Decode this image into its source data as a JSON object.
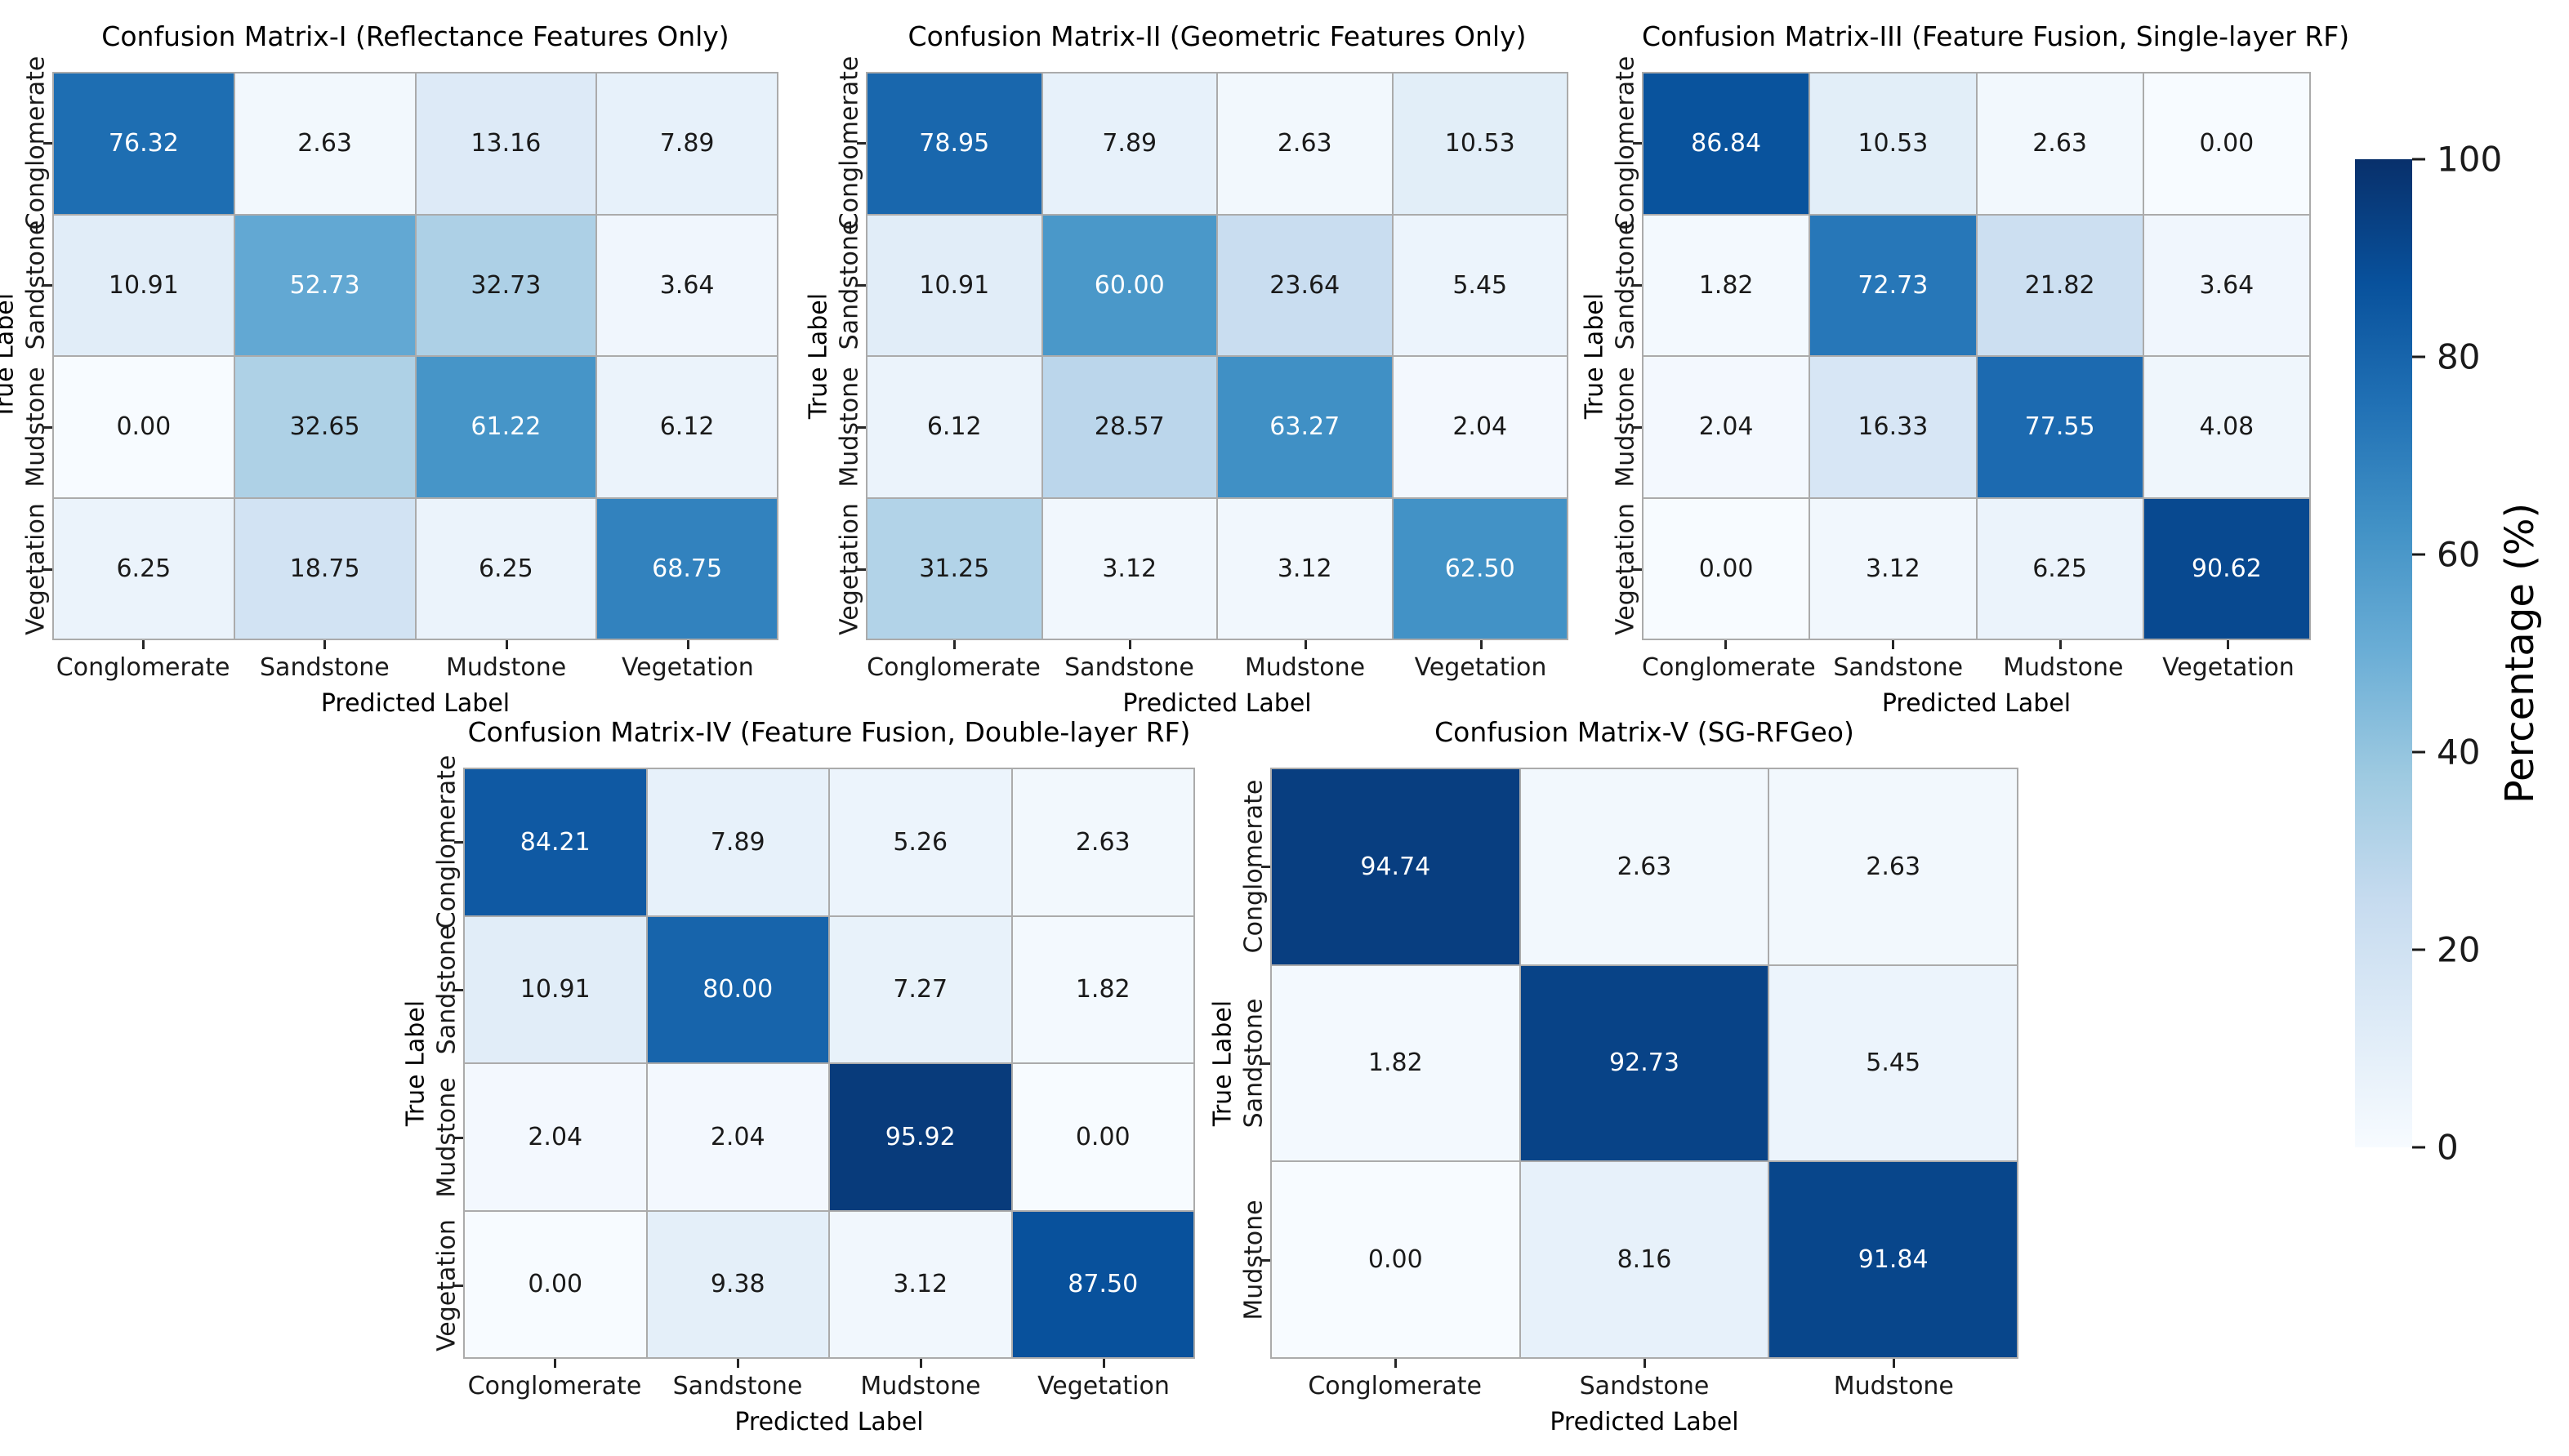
{
  "figure": {
    "background": "#ffffff",
    "colorbar": {
      "label": "Percentage (%)",
      "tick_values": [
        100,
        80,
        60,
        40,
        20,
        0
      ],
      "tick_labels": [
        "100",
        "80",
        "60",
        "40",
        "20",
        "0"
      ],
      "vmin": 0,
      "vmax": 100,
      "colormap": "Blues",
      "gradient_stops_light_to_dark": [
        "#f7fbff",
        "#deebf7",
        "#c6dbef",
        "#9ecae1",
        "#6baed6",
        "#4292c6",
        "#2171b5",
        "#08519c",
        "#08306b"
      ]
    },
    "annotation_text_dark": "#1a1a1a",
    "annotation_text_light": "#ffffff",
    "grid_line_color": "#ababab"
  },
  "chart_data": [
    {
      "type": "heatmap",
      "title": "Confusion Matrix-I (Reflectance Features Only)",
      "xlabel": "Predicted Label",
      "ylabel": "True Label",
      "x_categories": [
        "Conglomerate",
        "Sandstone",
        "Mudstone",
        "Vegetation"
      ],
      "y_categories": [
        "Conglomerate",
        "Sandstone",
        "Mudstone",
        "Vegetation"
      ],
      "values": [
        [
          76.32,
          2.63,
          13.16,
          7.89
        ],
        [
          10.91,
          52.73,
          32.73,
          3.64
        ],
        [
          0.0,
          32.65,
          61.22,
          6.12
        ],
        [
          6.25,
          18.75,
          6.25,
          68.75
        ]
      ],
      "vmin": 0,
      "vmax": 100,
      "colormap": "Blues",
      "legend": "none",
      "grid": "cell-borders"
    },
    {
      "type": "heatmap",
      "title": "Confusion Matrix-II (Geometric Features Only)",
      "xlabel": "Predicted Label",
      "ylabel": "True Label",
      "x_categories": [
        "Conglomerate",
        "Sandstone",
        "Mudstone",
        "Vegetation"
      ],
      "y_categories": [
        "Conglomerate",
        "Sandstone",
        "Mudstone",
        "Vegetation"
      ],
      "values": [
        [
          78.95,
          7.89,
          2.63,
          10.53
        ],
        [
          10.91,
          60.0,
          23.64,
          5.45
        ],
        [
          6.12,
          28.57,
          63.27,
          2.04
        ],
        [
          31.25,
          3.12,
          3.12,
          62.5
        ]
      ],
      "vmin": 0,
      "vmax": 100,
      "colormap": "Blues",
      "legend": "none",
      "grid": "cell-borders"
    },
    {
      "type": "heatmap",
      "title": "Confusion Matrix-III (Feature Fusion, Single-layer RF)",
      "xlabel": "Predicted Label",
      "ylabel": "True Label",
      "x_categories": [
        "Conglomerate",
        "Sandstone",
        "Mudstone",
        "Vegetation"
      ],
      "y_categories": [
        "Conglomerate",
        "Sandstone",
        "Mudstone",
        "Vegetation"
      ],
      "values": [
        [
          86.84,
          10.53,
          2.63,
          0.0
        ],
        [
          1.82,
          72.73,
          21.82,
          3.64
        ],
        [
          2.04,
          16.33,
          77.55,
          4.08
        ],
        [
          0.0,
          3.12,
          6.25,
          90.62
        ]
      ],
      "vmin": 0,
      "vmax": 100,
      "colormap": "Blues",
      "legend": "none",
      "grid": "cell-borders"
    },
    {
      "type": "heatmap",
      "title": "Confusion Matrix-IV (Feature Fusion, Double-layer RF)",
      "xlabel": "Predicted Label",
      "ylabel": "True Label",
      "x_categories": [
        "Conglomerate",
        "Sandstone",
        "Mudstone",
        "Vegetation"
      ],
      "y_categories": [
        "Conglomerate",
        "Sandstone",
        "Mudstone",
        "Vegetation"
      ],
      "values": [
        [
          84.21,
          7.89,
          5.26,
          2.63
        ],
        [
          10.91,
          80.0,
          7.27,
          1.82
        ],
        [
          2.04,
          2.04,
          95.92,
          0.0
        ],
        [
          0.0,
          9.38,
          3.12,
          87.5
        ]
      ],
      "vmin": 0,
      "vmax": 100,
      "colormap": "Blues",
      "legend": "none",
      "grid": "cell-borders"
    },
    {
      "type": "heatmap",
      "title": "Confusion Matrix-V (SG-RFGeo)",
      "xlabel": "Predicted Label",
      "ylabel": "True Label",
      "x_categories": [
        "Conglomerate",
        "Sandstone",
        "Mudstone"
      ],
      "y_categories": [
        "Conglomerate",
        "Sandstone",
        "Mudstone"
      ],
      "values": [
        [
          94.74,
          2.63,
          2.63
        ],
        [
          1.82,
          92.73,
          5.45
        ],
        [
          0.0,
          8.16,
          91.84
        ]
      ],
      "vmin": 0,
      "vmax": 100,
      "colormap": "Blues",
      "legend": "none",
      "grid": "cell-borders"
    }
  ]
}
